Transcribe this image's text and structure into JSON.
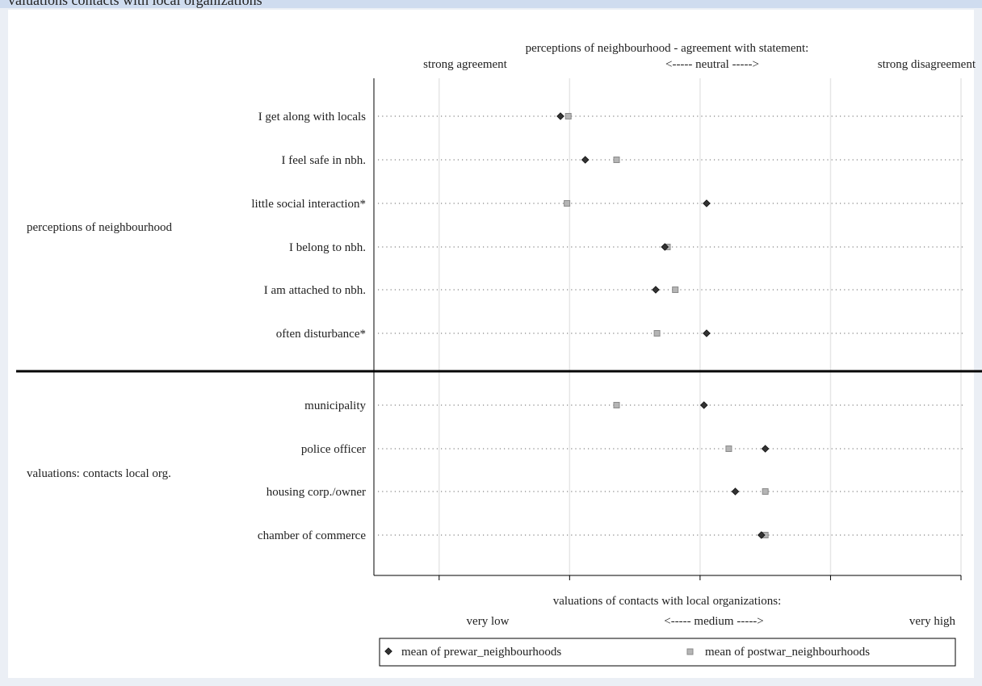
{
  "window": {
    "title": "valuations contacts with local organizations"
  },
  "chart_data": {
    "type": "scatter",
    "top_axis": {
      "title": "perceptions of neighbourhood - agreement with statement:",
      "left_label": "strong agreement",
      "center_label": "<----- neutral ----->",
      "right_label": "strong disagreement"
    },
    "bottom_axis": {
      "title": "valuations of contacts with local organizations:",
      "left_label": "very low",
      "center_label": "<----- medium ----->",
      "right_label": "very high"
    },
    "xlim": [
      1,
      5.5
    ],
    "grid_x": [
      1.5,
      2.5,
      3.5,
      4.5,
      5.5
    ],
    "groups": [
      {
        "name": "perceptions of neighbourhood",
        "categories": [
          "I get along with locals",
          "I feel safe in nbh.",
          "little social interaction*",
          "I belong to nbh.",
          "I am attached to nbh.",
          "often disturbance*"
        ]
      },
      {
        "name": "valuations: contacts local org.",
        "categories": [
          "municipality",
          "police officer",
          "housing corp./owner",
          "chamber of commerce"
        ]
      }
    ],
    "series": [
      {
        "name": "mean of prewar_neighbourhoods",
        "marker": "diamond",
        "color": "#333333",
        "values": [
          2.43,
          2.62,
          3.55,
          3.23,
          3.16,
          3.55,
          3.53,
          4.0,
          3.77,
          3.97
        ]
      },
      {
        "name": "mean of postwar_neighbourhoods",
        "marker": "square",
        "color": "#a0a0a0",
        "values": [
          2.49,
          2.86,
          2.48,
          3.25,
          3.31,
          3.17,
          2.86,
          3.72,
          4.0,
          4.0
        ]
      }
    ],
    "legend_position": "bottom"
  }
}
